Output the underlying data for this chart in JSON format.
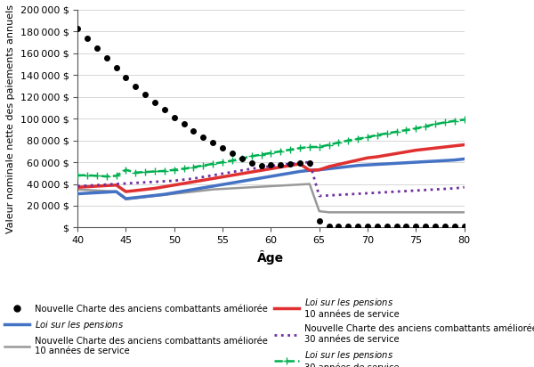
{
  "ages": [
    40,
    41,
    42,
    43,
    44,
    45,
    46,
    47,
    48,
    49,
    50,
    51,
    52,
    53,
    54,
    55,
    56,
    57,
    58,
    59,
    60,
    61,
    62,
    63,
    64,
    65,
    66,
    67,
    68,
    69,
    70,
    71,
    72,
    73,
    74,
    75,
    76,
    77,
    78,
    79,
    80
  ],
  "black_dots": [
    183000,
    174000,
    165000,
    156000,
    147000,
    138000,
    130000,
    122000,
    115000,
    108000,
    101000,
    95000,
    89000,
    83000,
    78000,
    73000,
    68000,
    63000,
    59000,
    57000,
    57500,
    58000,
    58500,
    59000,
    59500,
    6000,
    1000,
    1000,
    1000,
    1000,
    1000,
    1000,
    1000,
    1000,
    1000,
    1000,
    1000,
    1000,
    1000,
    1000,
    1000
  ],
  "gray_solid_pre": {
    "x": [
      40,
      44,
      45
    ],
    "y": [
      35000,
      32500,
      26000
    ]
  },
  "gray_solid": [
    35000,
    34500,
    34000,
    33500,
    33000,
    26000,
    27000,
    28000,
    29000,
    30000,
    31000,
    32000,
    33000,
    34000,
    35000,
    35500,
    36000,
    36500,
    37000,
    37500,
    38000,
    38500,
    39000,
    39500,
    40000,
    15000,
    14000,
    14000,
    14000,
    14000,
    14000,
    14000,
    14000,
    14000,
    14000,
    14000,
    14000,
    14000,
    14000,
    14000,
    14000
  ],
  "purple_dotted": [
    38000,
    38500,
    39000,
    39500,
    40000,
    40500,
    41000,
    41500,
    42000,
    42500,
    43000,
    44000,
    45000,
    46500,
    48000,
    49500,
    51000,
    52500,
    54000,
    55000,
    56500,
    57500,
    58500,
    59500,
    60000,
    29000,
    29500,
    30000,
    30500,
    31000,
    31500,
    32000,
    32500,
    33000,
    33500,
    34000,
    34500,
    35000,
    35500,
    36000,
    37000
  ],
  "blue_solid": [
    31000,
    31500,
    32000,
    32500,
    33000,
    26500,
    27500,
    28500,
    29500,
    30500,
    32000,
    33500,
    35000,
    36500,
    38000,
    39500,
    41000,
    42500,
    44000,
    45500,
    47000,
    48500,
    50000,
    51500,
    52500,
    53000,
    54000,
    55000,
    56000,
    57000,
    57500,
    58000,
    58500,
    59000,
    59500,
    60000,
    60500,
    61000,
    61500,
    62000,
    63000
  ],
  "red_solid": [
    37000,
    37500,
    38000,
    38500,
    39000,
    33000,
    34000,
    35000,
    36000,
    37500,
    39000,
    40500,
    42000,
    43500,
    45000,
    46500,
    48000,
    49500,
    51000,
    52500,
    54000,
    55500,
    57000,
    58500,
    52500,
    53000,
    56000,
    58000,
    60000,
    62000,
    64000,
    65000,
    66500,
    68000,
    69500,
    71000,
    72000,
    73000,
    74000,
    75000,
    76000
  ],
  "green_dashed": [
    48000,
    48000,
    47500,
    47000,
    47500,
    53000,
    50500,
    51000,
    51500,
    52000,
    53000,
    54000,
    55500,
    57000,
    58500,
    60000,
    61500,
    63500,
    65500,
    67000,
    68500,
    70000,
    71500,
    73000,
    74000,
    74000,
    76000,
    78000,
    80000,
    81500,
    83000,
    85000,
    86500,
    88000,
    89500,
    91000,
    93000,
    95000,
    96500,
    98000,
    99000
  ],
  "ylim": [
    0,
    200000
  ],
  "xlim": [
    40,
    80
  ],
  "yticks": [
    0,
    20000,
    40000,
    60000,
    80000,
    100000,
    120000,
    140000,
    160000,
    180000,
    200000
  ],
  "xticks": [
    40,
    45,
    50,
    55,
    60,
    65,
    70,
    75,
    80
  ],
  "xlabel": "Âge",
  "ylabel": "Valeur nominale nette des paiements annuels",
  "figsize": [
    6.0,
    4.12
  ],
  "dpi": 100
}
